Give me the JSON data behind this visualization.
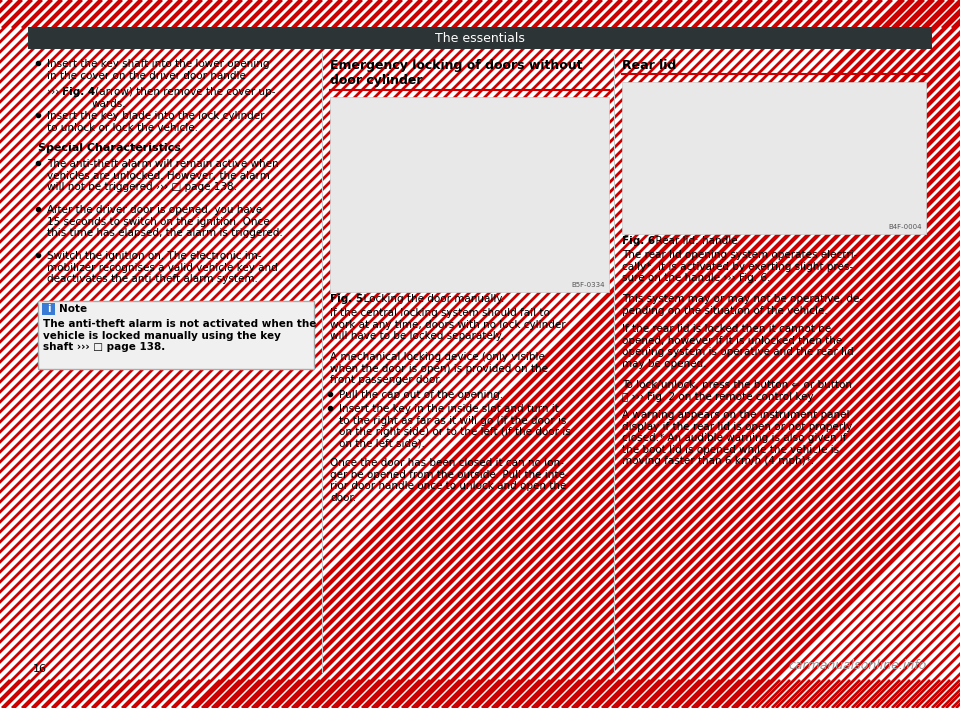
{
  "title": "The essentials",
  "title_bg": "#2d3436",
  "title_color": "#ffffff",
  "border_color": "#cc0000",
  "page_bg": "#ffffff",
  "page_number": "16",
  "col2_header": "Emergency locking of doors without\ndoor cylinder",
  "col2_fig_caption_bold": "Fig. 5",
  "col2_fig_caption_rest": "  Locking the door manually.",
  "col2_text1": "If the central locking system should fail to\nwork at any time, doors with no lock cylinder\nwill have to be locked separately.",
  "col2_text2": "A mechanical locking device (only visible\nwhen the door is open) is provided on the\nfront passenger door.",
  "col2_bullet1": "Pull the cap out of the opening.",
  "col2_bullet2": "Insert the key in the inside slot and turn it\nto the right as far as it will go (if the door is\non the right side) or to the left (if the door is\non the left side).",
  "col2_text3": "Once the door has been closed it can no lon-\nger be opened from the outside. Pull the inte-\nrior door handle once to unlock and open the\ndoor.",
  "col3_header": "Rear lid",
  "col3_fig_caption_bold": "Fig. 6",
  "col3_fig_caption_rest": "  Rear lid: handle",
  "col3_text1": "The rear lid opening system operates electri-\ncally*. It is activated by exerting slight pres-\nsure on the handle ››› Fig. 6.",
  "col3_text2": "This system may or may not be operative, de-\npending on the situation of the vehicle.",
  "col3_text3": "If the rear lid is locked then it cannot be\nopened, however if it is unlocked then the\nopening system is operative and the rear lid\nmay be opened.",
  "col3_text4": "To lock/unlock, press the button ⇐ or button\nⒹ ››› Fig. 2 on the remote control key.",
  "col3_text5": "A warning appears on the instrument panel\ndisplay if the rear lid is open or not properly\nclosed.* An audible warning is also given if\nthe boot lid is opened while the vehicle is\nmoving faster than 6 km/h (4 mph)*.",
  "watermark": "carmanualsonline.info",
  "stripe_color": "#cc0000",
  "note_icon_color": "#3a7bd5",
  "divider_color": "#cccccc",
  "note_bg": "#f0f0f0",
  "note_border": "#aaaaaa",
  "img_bg": "#e8e8e8",
  "img_border": "#cccccc"
}
